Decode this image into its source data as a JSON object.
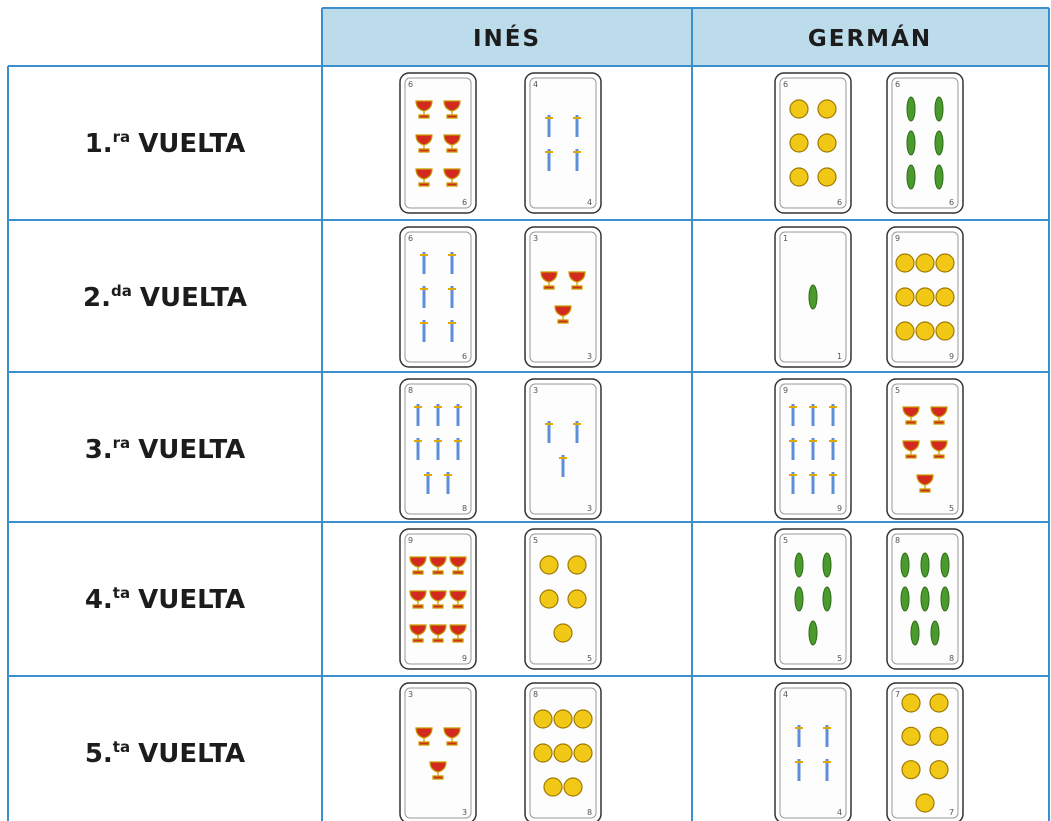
{
  "table": {
    "headers": [
      "INÉS",
      "GERMÁN"
    ],
    "rows": [
      {
        "label": {
          "number": "1.",
          "suffix": "ra",
          "word": "VUELTA"
        },
        "cards": [
          6,
          4,
          6,
          6
        ]
      },
      {
        "label": {
          "number": "2.",
          "suffix": "da",
          "word": "VUELTA"
        },
        "cards": [
          6,
          3,
          1,
          9
        ]
      },
      {
        "label": {
          "number": "3.",
          "suffix": "ra",
          "word": "VUELTA"
        },
        "cards": [
          8,
          3,
          9,
          5
        ]
      },
      {
        "label": {
          "number": "4.",
          "suffix": "ta",
          "word": "VUELTA"
        },
        "cards": [
          9,
          5,
          5,
          8
        ]
      },
      {
        "label": {
          "number": "5.",
          "suffix": "ta",
          "word": "VUELTA"
        },
        "cards": [
          3,
          8,
          4,
          7
        ]
      }
    ]
  }
}
